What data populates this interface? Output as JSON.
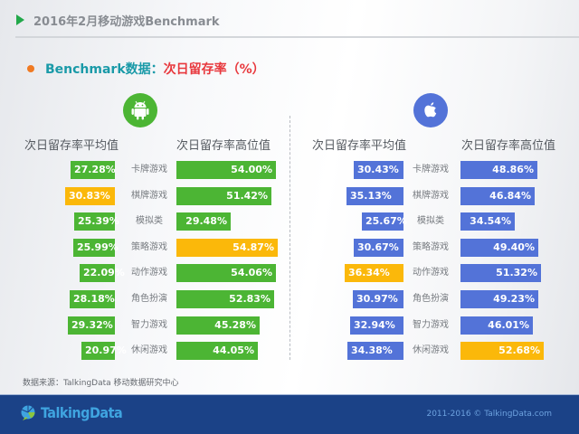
{
  "header": {
    "title": "2016年2月移动游戏Benchmark",
    "subtitle_prefix": "Benchmark数据：",
    "subtitle_metric": "次日留存率（%）"
  },
  "colors": {
    "android_green": "#4cb534",
    "ios_blue": "#5373d8",
    "highlight_yellow": "#fbb80a",
    "title_teal": "#1a9aa8",
    "title_red": "#e8383d",
    "footer_navy": "#1b4287"
  },
  "panels": {
    "android": {
      "icon": "android-icon",
      "avg_header": "次日留存率平均值",
      "high_header": "次日留存率高位值"
    },
    "ios": {
      "icon": "apple-icon",
      "avg_header": "次日留存率平均值",
      "high_header": "次日留存率高位值"
    }
  },
  "categories": [
    "卡牌游戏",
    "棋牌游戏",
    "模拟类",
    "策略游戏",
    "动作游戏",
    "角色扮演",
    "智力游戏",
    "休闲游戏"
  ],
  "chart_data": [
    {
      "type": "bar",
      "title": "Android 次日留存率",
      "categories": [
        "卡牌游戏",
        "棋牌游戏",
        "模拟类",
        "策略游戏",
        "动作游戏",
        "角色扮演",
        "智力游戏",
        "休闲游戏"
      ],
      "series": [
        {
          "name": "次日留存率平均值",
          "values": [
            27.28,
            30.83,
            25.39,
            25.99,
            22.09,
            28.18,
            29.32,
            20.97
          ],
          "labels": [
            "27.28%",
            "30.83%",
            "25.39%",
            "25.99%",
            "22.09%",
            "28.18%",
            "29.32%",
            "20.97%"
          ],
          "highlight_index": 1
        },
        {
          "name": "次日留存率高位值",
          "values": [
            54.0,
            51.42,
            29.48,
            54.87,
            54.06,
            52.83,
            45.28,
            44.05
          ],
          "labels": [
            "54.00%",
            "51.42%",
            "29.48%",
            "54.87%",
            "54.06%",
            "52.83%",
            "45.28%",
            "44.05%"
          ],
          "highlight_index": 3
        }
      ],
      "unit": "%"
    },
    {
      "type": "bar",
      "title": "iOS 次日留存率",
      "categories": [
        "卡牌游戏",
        "棋牌游戏",
        "模拟类",
        "策略游戏",
        "动作游戏",
        "角色扮演",
        "智力游戏",
        "休闲游戏"
      ],
      "series": [
        {
          "name": "次日留存率平均值",
          "values": [
            30.43,
            35.13,
            25.67,
            30.67,
            36.34,
            30.97,
            32.94,
            34.38
          ],
          "labels": [
            "30.43%",
            "35.13%",
            "25.67%",
            "30.67%",
            "36.34%",
            "30.97%",
            "32.94%",
            "34.38%"
          ],
          "highlight_index": 4
        },
        {
          "name": "次日留存率高位值",
          "values": [
            48.86,
            46.84,
            34.54,
            49.4,
            51.32,
            49.23,
            46.01,
            52.68
          ],
          "labels": [
            "48.86%",
            "46.84%",
            "34.54%",
            "49.40%",
            "51.32%",
            "49.23%",
            "46.01%",
            "52.68%"
          ],
          "highlight_index": 7
        }
      ],
      "unit": "%"
    }
  ],
  "footer": {
    "source": "数据来源：TalkingData 移动数据研究中心",
    "logo_text": "TalkingData",
    "copyright": "2011-2016 © TalkingData.com"
  }
}
